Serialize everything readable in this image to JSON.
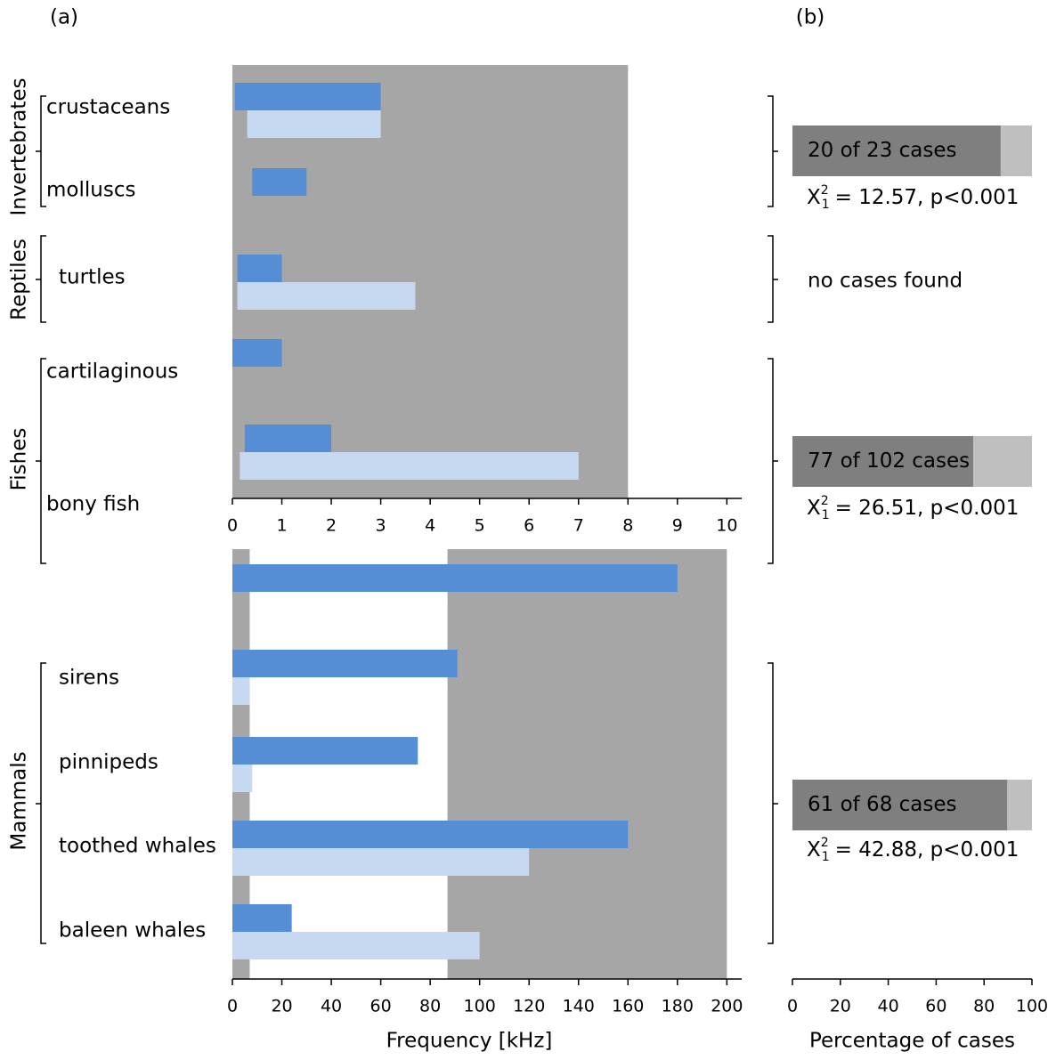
{
  "panel_labels": [
    "(a)",
    "(b)"
  ],
  "groups": [
    "Invertebrates",
    "Reptiles",
    "Fishes",
    "Mammals"
  ],
  "chart_data": [
    {
      "type": "range-bar",
      "categories": [
        "crustaceans",
        "molluscs",
        "turtles",
        "cartilaginous",
        "bony fish"
      ],
      "series": [
        {
          "color": "#558ed5",
          "starts": [
            0.05,
            0.4,
            0.1,
            0,
            0.25
          ],
          "values": [
            3,
            1.5,
            1,
            1,
            2
          ]
        },
        {
          "color": "#c6d9f1",
          "starts": [
            0.3,
            null,
            0.1,
            null,
            0.15
          ],
          "values": [
            3,
            null,
            3.7,
            null,
            7
          ]
        }
      ],
      "shade": {
        "color": "#a6a6a6",
        "range": [
          0,
          8
        ]
      },
      "xlim": [
        0,
        10.3
      ],
      "xticks": [
        0,
        1,
        2,
        3,
        4,
        5,
        6,
        7,
        8,
        9,
        10
      ]
    },
    {
      "type": "range-bar",
      "categories": [
        null,
        "sirens",
        "pinnipeds",
        "toothed whales",
        "baleen whales"
      ],
      "series": [
        {
          "color": "#558ed5",
          "starts": [
            0,
            0,
            0,
            0,
            0
          ],
          "values": [
            180,
            91,
            75,
            160,
            24
          ]
        },
        {
          "color": "#c6d9f1",
          "starts": [
            null,
            0,
            0,
            0,
            0
          ],
          "values": [
            null,
            7,
            8,
            120,
            100
          ]
        }
      ],
      "shade": {
        "color": "#a6a6a6",
        "range": [
          0,
          200
        ]
      },
      "clear": {
        "color": "#ffffff",
        "range": [
          7,
          87
        ]
      },
      "xlim": [
        0,
        206
      ],
      "xticks": [
        0,
        20,
        40,
        60,
        80,
        100,
        120,
        140,
        160,
        180,
        200
      ],
      "xlabel": "Frequency [kHz]"
    },
    {
      "type": "stacked-bar",
      "series": [
        {
          "color": "#7f7f7f",
          "values": [
            86.96,
            null,
            75.49,
            89.71
          ]
        },
        {
          "color": "#bfbfbf",
          "values": [
            13.04,
            null,
            24.51,
            10.29
          ]
        }
      ],
      "counts": [
        "20 of 23 cases",
        null,
        "77 of 102 cases",
        "61 of 68 cases"
      ],
      "notes": [
        null,
        "no cases found",
        null,
        null
      ],
      "stats": [
        {
          "symbol": "X",
          "sup": "2",
          "sub": "1",
          "text": "= 12.57, p<0.001"
        },
        null,
        {
          "symbol": "X",
          "sup": "2",
          "sub": "1",
          "text": "= 26.51, p<0.001"
        },
        {
          "symbol": "X",
          "sup": "2",
          "sub": "1",
          "text": "= 42.88, p<0.001"
        }
      ],
      "xlim": [
        0,
        100
      ],
      "xticks": [
        0,
        20,
        40,
        60,
        80,
        100
      ],
      "xlabel": "Percentage of cases"
    }
  ]
}
